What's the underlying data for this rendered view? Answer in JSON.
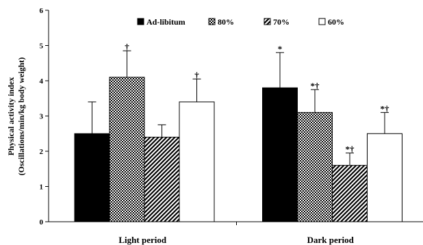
{
  "chart_data": {
    "type": "bar",
    "title": "",
    "xlabel": "",
    "ylabel_lines": [
      "Physical activity index",
      "(Oscillations/min/kg body weight)"
    ],
    "ylim": [
      0,
      6
    ],
    "yticks": [
      "0",
      "1",
      "2",
      "3",
      "4",
      "5",
      "6"
    ],
    "categories": [
      "Light period",
      "Dark period"
    ],
    "series": [
      {
        "name": "Ad-libitum",
        "pattern": "solid",
        "values": [
          2.5,
          3.8
        ],
        "errors": [
          0.9,
          1.0
        ],
        "annotations": [
          "",
          "*"
        ]
      },
      {
        "name": "80%",
        "pattern": "checker",
        "values": [
          4.1,
          3.1
        ],
        "errors": [
          0.75,
          0.65
        ],
        "annotations": [
          "†",
          "*†"
        ]
      },
      {
        "name": "70%",
        "pattern": "diagonal",
        "values": [
          2.4,
          1.6
        ],
        "errors": [
          0.35,
          0.35
        ],
        "annotations": [
          "",
          "*†"
        ]
      },
      {
        "name": "60%",
        "pattern": "white",
        "values": [
          3.4,
          2.5
        ],
        "errors": [
          0.65,
          0.6
        ],
        "annotations": [
          "†",
          "*†"
        ]
      }
    ],
    "legend_position": "top",
    "grid": false,
    "colors": {
      "bar_fill": "#000000",
      "bar_stroke": "#000000",
      "background": "#ffffff"
    }
  }
}
